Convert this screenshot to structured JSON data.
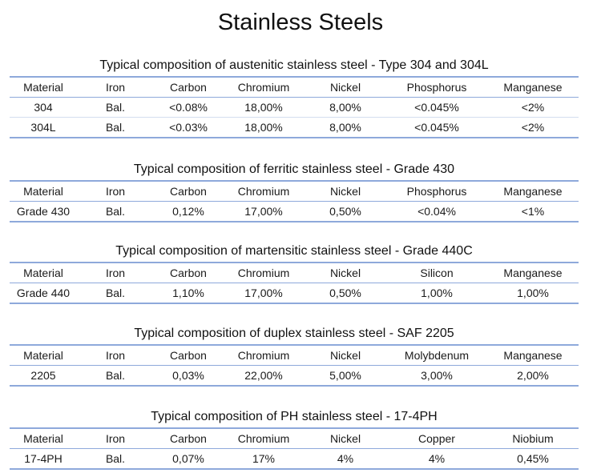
{
  "page": {
    "title": "Stainless Steels"
  },
  "sections": [
    {
      "title": "Typical composition of austenitic stainless steel  - Type 304 and 304L",
      "headers": [
        "Material",
        "Iron",
        "Carbon",
        "Chromium",
        "Nickel",
        "Phosphorus",
        "Manganese"
      ],
      "rows": [
        [
          "304",
          "Bal.",
          "<0.08%",
          "18,00%",
          "8,00%",
          "<0.045%",
          "<2%"
        ],
        [
          "304L",
          "Bal.",
          "<0.03%",
          "18,00%",
          "8,00%",
          "<0.045%",
          "<2%"
        ]
      ]
    },
    {
      "title": "Typical composition of ferritic stainless steel  - Grade 430",
      "headers": [
        "Material",
        "Iron",
        "Carbon",
        "Chromium",
        "Nickel",
        "Phosphorus",
        "Manganese"
      ],
      "rows": [
        [
          "Grade 430",
          "Bal.",
          "0,12%",
          "17,00%",
          "0,50%",
          "<0.04%",
          "<1%"
        ]
      ]
    },
    {
      "title": "Typical composition of martensitic stainless steel  - Grade 440C",
      "headers": [
        "Material",
        "Iron",
        "Carbon",
        "Chromium",
        "Nickel",
        "Silicon",
        "Manganese"
      ],
      "rows": [
        [
          "Grade 440",
          "Bal.",
          "1,10%",
          "17,00%",
          "0,50%",
          "1,00%",
          "1,00%"
        ]
      ]
    },
    {
      "title": "Typical composition of duplex stainless steel  - SAF 2205",
      "headers": [
        "Material",
        "Iron",
        "Carbon",
        "Chromium",
        "Nickel",
        "Molybdenum",
        "Manganese"
      ],
      "rows": [
        [
          "2205",
          "Bal.",
          "0,03%",
          "22,00%",
          "5,00%",
          "3,00%",
          "2,00%"
        ]
      ]
    },
    {
      "title": "Typical composition of PH stainless steel  - 17-4PH",
      "headers": [
        "Material",
        "Iron",
        "Carbon",
        "Chromium",
        "Nickel",
        "Copper",
        "Niobium"
      ],
      "rows": [
        [
          "17-4PH",
          "Bal.",
          "0,07%",
          "17%",
          "4%",
          "4%",
          "0,45%"
        ]
      ]
    }
  ],
  "colors": {
    "rule": "#8ea9db",
    "row_divider": "#d4deef",
    "text": "#1a1a1a"
  }
}
